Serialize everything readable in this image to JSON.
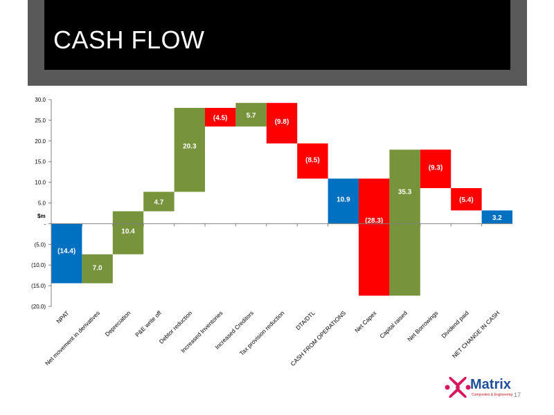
{
  "slide": {
    "title": "CASH FLOW",
    "page_number": "17"
  },
  "logo": {
    "name": "Matrix",
    "tagline": "Composites & Engineering",
    "colors": {
      "mark": "#d6185f",
      "word": "#1f4e9a"
    }
  },
  "chart_data": {
    "type": "waterfall",
    "ylabel": "$m",
    "ylim": [
      -20,
      30
    ],
    "yticks": [
      30,
      25,
      20,
      15,
      10,
      5,
      0,
      -5,
      -10,
      -15,
      -20
    ],
    "ytick_labels": [
      "30.0",
      "25.0",
      "20.0",
      "15.0",
      "10.0",
      "5.0",
      "-",
      "(5.0)",
      "(10.0)",
      "(15.0)",
      "(20.0)"
    ],
    "grid": false,
    "colors": {
      "increase": "#77933c",
      "decrease": "#ff0000",
      "total": "#0070c0"
    },
    "categories": [
      "NPAT",
      "Net movement in derivatives",
      "Depreciation",
      "P&E write off",
      "Debtor reduction",
      "Increased Inventories",
      "Increased Creditors",
      "Tax provision reduction",
      "DTA/DTL",
      "CASH FROM OPERATIONS",
      "Net Capex",
      "Capital raised",
      "Net Borrowings",
      "Dividend paid",
      "NET CHANGE IN CASH"
    ],
    "values": [
      -14.4,
      7.0,
      10.4,
      4.7,
      20.3,
      -4.5,
      5.7,
      -9.8,
      -8.5,
      10.9,
      -28.3,
      35.3,
      -9.3,
      -5.4,
      3.2
    ],
    "kinds": [
      "total",
      "increase",
      "increase",
      "increase",
      "increase",
      "decrease",
      "increase",
      "decrease",
      "decrease",
      "total",
      "decrease",
      "increase",
      "decrease",
      "decrease",
      "total"
    ],
    "data_labels": [
      "(14.4)",
      "7.0",
      "10.4",
      "4.7",
      "20.3",
      "(4.5)",
      "5.7",
      "(9.8)",
      "(8.5)",
      "10.9",
      "(28.3)",
      "35.3",
      "(9.3)",
      "(5.4)",
      "3.2"
    ],
    "bars": [
      {
        "low": -14.4,
        "high": 0
      },
      {
        "low": -14.4,
        "high": -7.4
      },
      {
        "low": -7.4,
        "high": 3.0
      },
      {
        "low": 3.0,
        "high": 7.7
      },
      {
        "low": 7.7,
        "high": 28.0
      },
      {
        "low": 23.5,
        "high": 28.0
      },
      {
        "low": 23.5,
        "high": 29.2
      },
      {
        "low": 19.4,
        "high": 29.2
      },
      {
        "low": 10.9,
        "high": 19.4
      },
      {
        "low": 0,
        "high": 10.9
      },
      {
        "low": -17.4,
        "high": 10.9
      },
      {
        "low": -17.4,
        "high": 17.9
      },
      {
        "low": 8.6,
        "high": 17.9
      },
      {
        "low": 3.2,
        "high": 8.6
      },
      {
        "low": 0,
        "high": 3.2
      }
    ]
  }
}
